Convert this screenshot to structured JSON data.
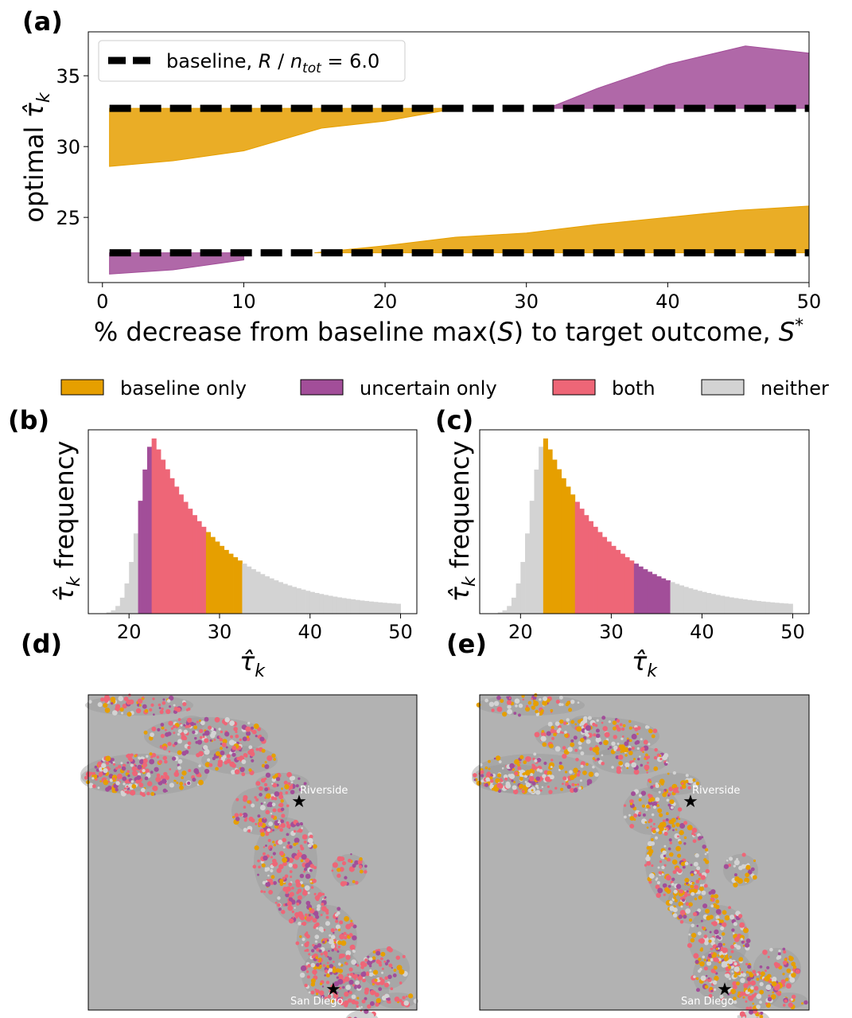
{
  "colors": {
    "baseline_only": "#e69f00",
    "uncertain_only": "#a24e99",
    "both": "#ee6677",
    "neither": "#d3d3d3",
    "map_background": "#b2b2b2"
  },
  "panel_labels": {
    "a": "(a)",
    "b": "(b)",
    "c": "(c)",
    "d": "(d)",
    "e": "(e)"
  },
  "legend_categories": [
    {
      "label": "baseline only",
      "color": "#e69f00"
    },
    {
      "label": "uncertain only",
      "color": "#a24e99"
    },
    {
      "label": "both",
      "color": "#ee6677"
    },
    {
      "label": "neither",
      "color": "#d3d3d3"
    }
  ],
  "chart_data": [
    {
      "panel": "a",
      "type": "area",
      "xlabel": "% decrease from baseline max(S) to target outcome, S*",
      "ylabel": "optimal τ̂_k",
      "xlim": [
        -1,
        50
      ],
      "ylim": [
        20.4,
        38.1
      ],
      "xticks": [
        0,
        10,
        20,
        30,
        40,
        50
      ],
      "yticks": [
        25,
        30,
        35
      ],
      "legend": {
        "label": "baseline, R / n_tot = 6.0",
        "placement": "top-left"
      },
      "baseline_lines": [
        {
          "name": "baseline, R / n_tot = 6.0",
          "y": 32.7
        },
        {
          "y": 22.5
        }
      ],
      "bands": [
        {
          "category": "baseline only",
          "x": [
            0.5,
            5,
            10,
            15.5,
            20,
            24,
            25
          ],
          "lower": [
            28.6,
            29.0,
            29.7,
            31.3,
            31.8,
            32.5,
            32.7
          ],
          "upper": [
            32.7,
            32.7,
            32.7,
            32.7,
            32.7,
            32.7,
            32.7
          ]
        },
        {
          "category": "uncertain only",
          "x": [
            31.5,
            35,
            40,
            45.5,
            50
          ],
          "lower": [
            32.7,
            32.7,
            32.7,
            32.7,
            32.7
          ],
          "upper": [
            32.7,
            34.1,
            35.8,
            37.1,
            36.6
          ]
        },
        {
          "category": "baseline only",
          "x": [
            15,
            20,
            25,
            30,
            35,
            40,
            45,
            50
          ],
          "lower": [
            22.5,
            22.5,
            22.5,
            22.5,
            22.5,
            22.5,
            22.5,
            22.5
          ],
          "upper": [
            22.5,
            23.0,
            23.6,
            23.9,
            24.5,
            25.0,
            25.5,
            25.8
          ]
        },
        {
          "category": "uncertain only",
          "x": [
            0.5,
            5,
            10
          ],
          "lower": [
            21.0,
            21.3,
            22.0
          ],
          "upper": [
            22.5,
            22.5,
            22.5
          ]
        }
      ]
    },
    {
      "panel": "b",
      "type": "bar",
      "xlabel": "τ̂_k",
      "ylabel": "τ̂_k frequency",
      "xlim": [
        15.5,
        51.8
      ],
      "xticks": [
        20,
        30,
        40,
        50
      ],
      "hist": {
        "x_start": 17.5,
        "x_end": 50,
        "n_bins": 65,
        "peak": 22.75,
        "sigma_left": 1.6,
        "tail_decay": 7.5,
        "tail_floor": 0.03
      },
      "category_ranges": [
        {
          "category": "neither",
          "from": 17.5,
          "to": 21.25
        },
        {
          "category": "uncertain only",
          "from": 21.25,
          "to": 22.75
        },
        {
          "category": "both",
          "from": 22.75,
          "to": 28.5
        },
        {
          "category": "baseline only",
          "from": 28.5,
          "to": 32.5
        },
        {
          "category": "neither",
          "from": 32.5,
          "to": 50
        }
      ]
    },
    {
      "panel": "c",
      "type": "bar",
      "xlabel": "τ̂_k",
      "ylabel": "τ̂_k frequency",
      "xlim": [
        15.5,
        51.8
      ],
      "xticks": [
        20,
        30,
        40,
        50
      ],
      "hist": {
        "x_start": 17.5,
        "x_end": 50,
        "n_bins": 65,
        "peak": 22.75,
        "sigma_left": 1.6,
        "tail_decay": 7.5,
        "tail_floor": 0.03
      },
      "category_ranges": [
        {
          "category": "neither",
          "from": 17.5,
          "to": 22.5
        },
        {
          "category": "baseline only",
          "from": 22.5,
          "to": 26.0
        },
        {
          "category": "both",
          "from": 26.0,
          "to": 32.5
        },
        {
          "category": "uncertain only",
          "from": 32.5,
          "to": 36.5
        },
        {
          "category": "neither",
          "from": 36.5,
          "to": 50
        }
      ]
    }
  ],
  "maps": {
    "cities": [
      {
        "name": "Riverside"
      },
      {
        "name": "San Diego"
      }
    ]
  }
}
